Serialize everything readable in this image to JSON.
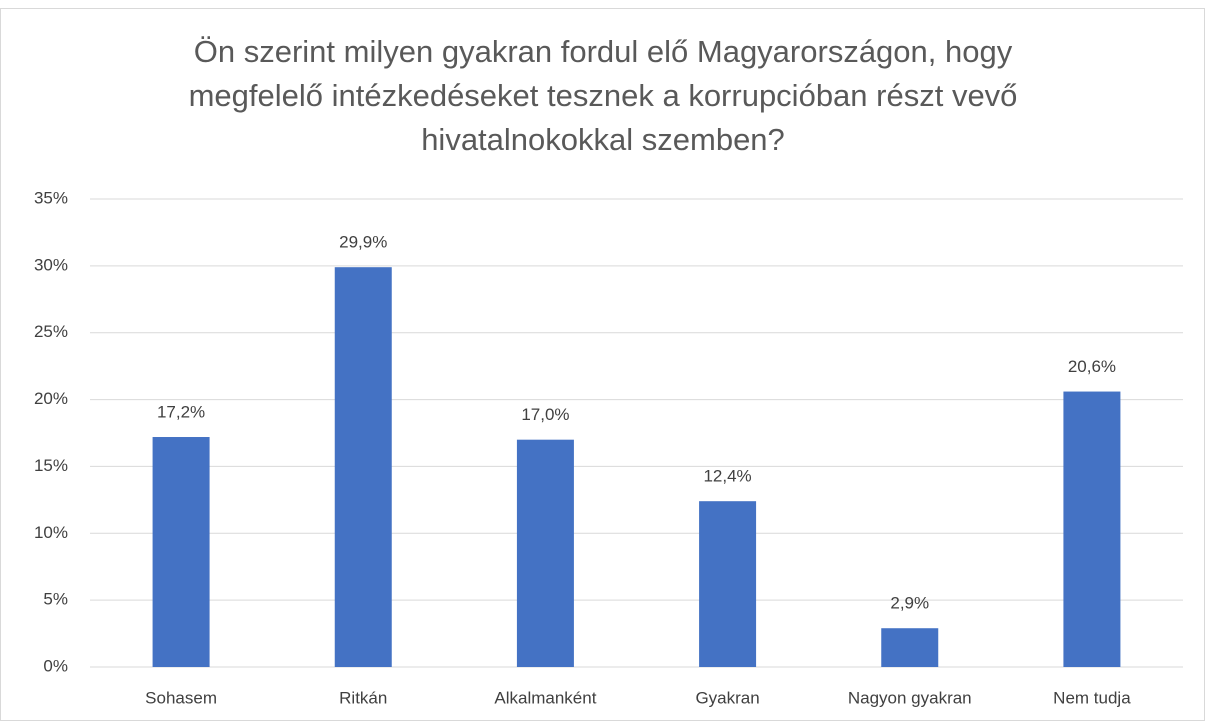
{
  "chart_data": {
    "type": "bar",
    "title": "Ön szerint milyen gyakran fordul elő Magyarországon, hogy megfelelő intézkedéseket tesznek a korrupcióban részt vevő hivatalnokokkal szemben?",
    "categories": [
      "Sohasem",
      "Ritkán",
      "Alkalmanként",
      "Gyakran",
      "Nagyon gyakran",
      "Nem tudja"
    ],
    "values": [
      17.2,
      29.9,
      17.0,
      12.4,
      2.9,
      20.6
    ],
    "value_labels": [
      "17,2%",
      "29,9%",
      "17,0%",
      "12,4%",
      "2,9%",
      "20,6%"
    ],
    "color": "#4472c4",
    "ylim": [
      0,
      35
    ],
    "yticks": [
      {
        "value": 0,
        "label": "0%"
      },
      {
        "value": 5,
        "label": "5%"
      },
      {
        "value": 10,
        "label": "10%"
      },
      {
        "value": 15,
        "label": "15%"
      },
      {
        "value": 20,
        "label": "20%"
      },
      {
        "value": 25,
        "label": "25%"
      },
      {
        "value": 30,
        "label": "30%"
      },
      {
        "value": 35,
        "label": "35%"
      }
    ],
    "grid": true
  }
}
